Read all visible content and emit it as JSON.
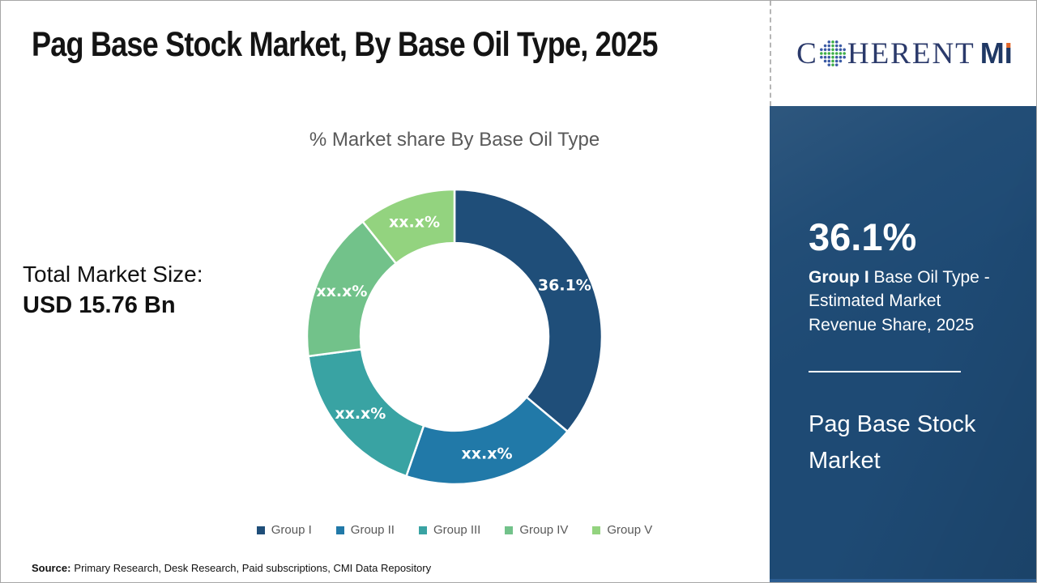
{
  "header": {
    "title": "Pag Base Stock Market, By Base Oil Type, 2025"
  },
  "logo": {
    "brand_c": "C",
    "brand_rest": "HERENT",
    "brand_m": "M",
    "brand_i": "I",
    "globe_dot_colors": {
      "axis": "#3FAE49",
      "ring": "#3B5BA5",
      "accent": "#D9442B"
    },
    "navy": "#2B3A6B",
    "mi_navy": "#1F3864",
    "accent_orange": "#E2672A"
  },
  "stats": {
    "total_label": "Total Market Size:",
    "total_value": "USD 15.76 Bn"
  },
  "chart_data": {
    "type": "pie",
    "subtype": "donut",
    "title": "% Market share By Base Oil Type",
    "categories": [
      "Group I",
      "Group II",
      "Group III",
      "Group IV",
      "Group V"
    ],
    "values": [
      36.1,
      19.2,
      17.6,
      16.4,
      10.7
    ],
    "slice_labels": [
      "36.1%",
      "xx.x%",
      "xx.x%",
      "xx.x%",
      "xx.x%"
    ],
    "colors": [
      "#1F4E79",
      "#2179A8",
      "#39A3A3",
      "#72C28A",
      "#93D37F"
    ],
    "start_angle_deg": 0,
    "direction": "clockwise",
    "inner_radius_ratio": 0.637,
    "label_radius_ratio": 0.824,
    "label_color": "#ffffff",
    "separator_color": "#ffffff",
    "legend_position": "bottom"
  },
  "sidebar": {
    "share_value": "36.1%",
    "desc_bold": "Group I",
    "desc_rest": " Base Oil Type - Estimated Market Revenue Share, 2025",
    "market_name": "Pag Base Stock Market",
    "background": "#1E4A74"
  },
  "footer": {
    "source_label": "Source:",
    "source_text": "Primary Research, Desk Research, Paid subscriptions, CMI Data Repository"
  }
}
